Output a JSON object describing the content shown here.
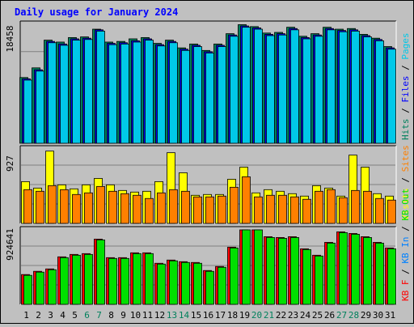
{
  "chart_data": {
    "type": "bar",
    "title": "Daily usage for January 2024",
    "categories": [
      "1",
      "2",
      "3",
      "4",
      "5",
      "6",
      "7",
      "8",
      "9",
      "10",
      "11",
      "12",
      "13",
      "14",
      "15",
      "16",
      "17",
      "18",
      "19",
      "20",
      "21",
      "22",
      "23",
      "24",
      "25",
      "26",
      "27",
      "28",
      "29",
      "30",
      "31"
    ],
    "weekend_days": [
      "6",
      "7",
      "13",
      "14",
      "20",
      "21",
      "27",
      "28"
    ],
    "colors": {
      "hits": "#00805c",
      "files": "#0000ff",
      "pages": "#00c8e8",
      "visits": "#ffff00",
      "sites": "#ff8000",
      "kb_f": "#ff0000",
      "kb_in": "#0080ff",
      "kb_out": "#00e000",
      "weekend_label": "#00805c",
      "title": "#0000ff"
    },
    "panels": [
      {
        "id": "top",
        "axis_label": "18458",
        "ylim": [
          0,
          18458
        ],
        "legend": [
          {
            "text": "Hits",
            "color": "#00805c"
          },
          {
            "text": " / ",
            "color": "#000000"
          },
          {
            "text": "Files",
            "color": "#0000ff"
          },
          {
            "text": " / ",
            "color": "#000000"
          },
          {
            "text": "Pages",
            "color": "#00c8e8"
          }
        ],
        "series": [
          {
            "name": "Hits",
            "color": "#00805c",
            "values": [
              10200,
              11700,
              16000,
              15700,
              16400,
              16500,
              17700,
              15700,
              15800,
              16200,
              16400,
              15500,
              16000,
              14800,
              15400,
              14400,
              15400,
              17000,
              18400,
              18100,
              17100,
              17200,
              18000,
              16600,
              17000,
              18000,
              17700,
              17800,
              16900,
              16300,
              15000
            ]
          },
          {
            "name": "Files",
            "color": "#0000ff",
            "values": [
              10000,
              11400,
              15800,
              15400,
              16200,
              16300,
              17600,
              15500,
              15600,
              15900,
              16200,
              15300,
              15800,
              14600,
              15200,
              14200,
              15200,
              16800,
              18200,
              17900,
              16900,
              17000,
              17800,
              16400,
              16800,
              17800,
              17500,
              17600,
              16700,
              16100,
              14800
            ]
          },
          {
            "name": "Pages",
            "color": "#00c8e8",
            "values": [
              9800,
              11200,
              15600,
              15200,
              16000,
              16100,
              17400,
              15300,
              15400,
              15700,
              16000,
              15100,
              15600,
              14400,
              15000,
              14000,
              15000,
              16600,
              18000,
              17700,
              16700,
              16800,
              17600,
              16200,
              16600,
              17600,
              17300,
              17400,
              16500,
              15900,
              14600
            ]
          }
        ]
      },
      {
        "id": "mid",
        "axis_label": "927",
        "ylim": [
          0,
          927
        ],
        "legend": [
          {
            "text": "Visits",
            "color": "#ffff00"
          },
          {
            "text": " / ",
            "color": "#000000"
          },
          {
            "text": "Sites",
            "color": "#ff8000"
          }
        ],
        "series": [
          {
            "name": "Visits",
            "color": "#ffff00",
            "values": [
              520,
              440,
              900,
              480,
              430,
              480,
              560,
              480,
              410,
              390,
              400,
              520,
              880,
              630,
              350,
              360,
              360,
              550,
              700,
              380,
              420,
              400,
              370,
              340,
              470,
              440,
              340,
              850,
              700,
              370,
              340
            ]
          },
          {
            "name": "Sites",
            "color": "#ff8000",
            "values": [
              420,
              400,
              470,
              420,
              360,
              380,
              460,
              400,
              370,
              350,
              310,
              380,
              420,
              400,
              330,
              330,
              340,
              450,
              580,
              330,
              350,
              350,
              330,
              300,
              400,
              420,
              320,
              410,
              400,
              310,
              290
            ]
          }
        ]
      },
      {
        "id": "bot",
        "axis_label": "924641",
        "ylim": [
          0,
          924641
        ],
        "legend": [
          {
            "text": "KB F",
            "color": "#ff0000"
          },
          {
            "text": " / ",
            "color": "#000000"
          },
          {
            "text": "KB In",
            "color": "#0080ff"
          },
          {
            "text": " / ",
            "color": "#000000"
          },
          {
            "text": "KB Out",
            "color": "#00e000"
          }
        ],
        "series": [
          {
            "name": "KB F",
            "color": "#ff0000",
            "values": [
              370000,
              410000,
              440000,
              590000,
              620000,
              630000,
              810000,
              580000,
              580000,
              640000,
              640000,
              510000,
              550000,
              530000,
              520000,
              420000,
              470000,
              710000,
              950000,
              950000,
              840000,
              830000,
              840000,
              690000,
              610000,
              770000,
              900000,
              880000,
              840000,
              770000,
              700000
            ]
          },
          {
            "name": "KB Out",
            "color": "#00e000",
            "values": [
              360000,
              400000,
              430000,
              580000,
              610000,
              620000,
              800000,
              570000,
              570000,
              630000,
              630000,
              500000,
              540000,
              520000,
              510000,
              410000,
              460000,
              700000,
              940000,
              940000,
              830000,
              820000,
              830000,
              680000,
              600000,
              760000,
              890000,
              870000,
              830000,
              760000,
              690000
            ]
          }
        ]
      }
    ]
  }
}
